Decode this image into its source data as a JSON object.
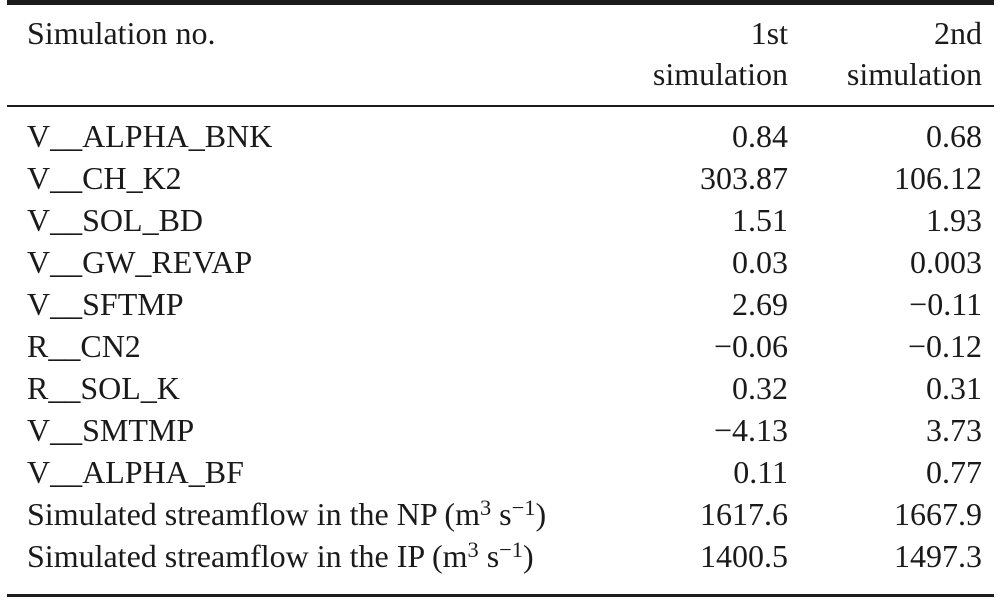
{
  "table": {
    "header": {
      "col1": "Simulation no.",
      "col2_line1": "1st",
      "col2_line2": "simulation",
      "col3_line1": "2nd",
      "col3_line2": "simulation"
    },
    "rows": [
      {
        "param": "V__ALPHA_BNK",
        "sim1": "0.84",
        "sim2": "0.68"
      },
      {
        "param": "V__CH_K2",
        "sim1": "303.87",
        "sim2": "106.12"
      },
      {
        "param": "V__SOL_BD",
        "sim1": "1.51",
        "sim2": "1.93"
      },
      {
        "param": "V__GW_REVAP",
        "sim1": "0.03",
        "sim2": "0.003"
      },
      {
        "param": "V__SFTMP",
        "sim1": "2.69",
        "sim2": "−0.11"
      },
      {
        "param": "R__CN2",
        "sim1": "−0.06",
        "sim2": "−0.12"
      },
      {
        "param": "R__SOL_K",
        "sim1": "0.32",
        "sim2": "0.31"
      },
      {
        "param": "V__SMTMP",
        "sim1": "−4.13",
        "sim2": "3.73"
      },
      {
        "param": "V__ALPHA_BF",
        "sim1": "0.11",
        "sim2": "0.77"
      },
      {
        "param": "Simulated streamflow in the NP (m^{3} s^{−1})",
        "sim1": "1617.6",
        "sim2": "1667.9"
      },
      {
        "param": "Simulated streamflow in the IP (m^{3} s^{−1})",
        "sim1": "1400.5",
        "sim2": "1497.3"
      }
    ],
    "colors": {
      "text": "#1a1a1a",
      "rule": "#1c1c1c",
      "background": "#ffffff"
    }
  }
}
